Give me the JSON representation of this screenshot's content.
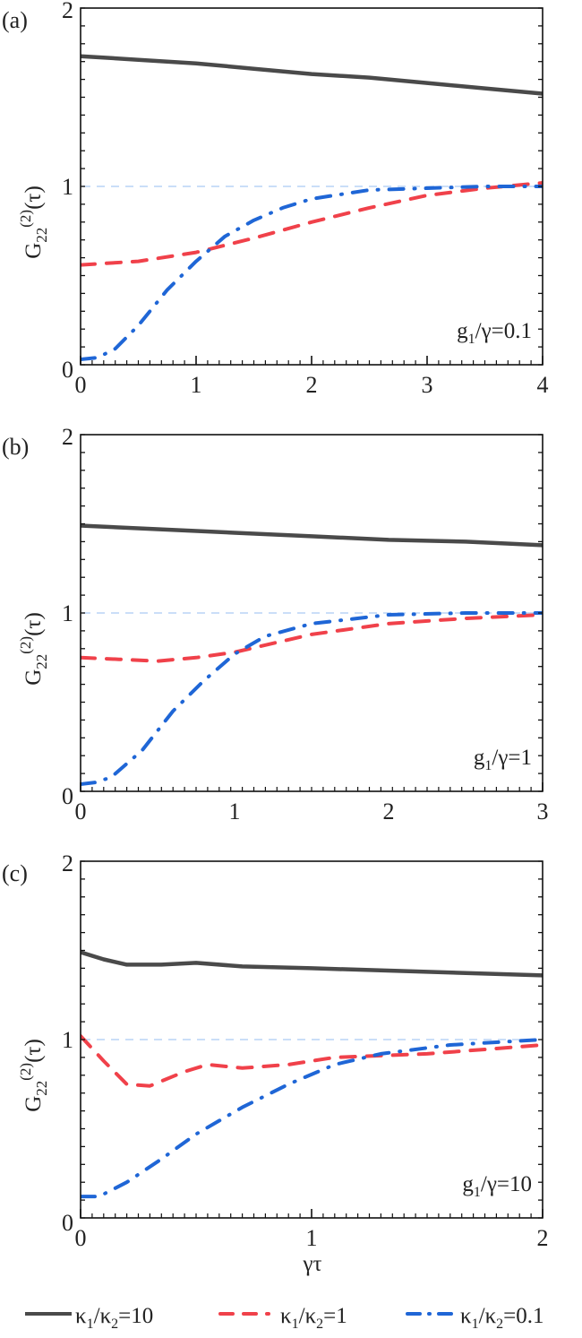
{
  "chart_data": [
    {
      "type": "line",
      "panel_label": "(a)",
      "annotation": {
        "main": "g",
        "sub": "1",
        "rest": "/γ=0.1"
      },
      "ylabel": {
        "main": "G",
        "sub": "22",
        "sup": "(2)",
        "rest": "(τ)"
      },
      "xlabel": "",
      "xlim": [
        0,
        4
      ],
      "ylim": [
        0,
        2
      ],
      "xticks": [
        "0",
        "1",
        "2",
        "3",
        "4"
      ],
      "xtick_values": [
        0,
        1,
        2,
        3,
        4
      ],
      "yticks": [
        "0",
        "1",
        "2"
      ],
      "ytick_values": [
        0,
        1,
        2
      ],
      "reference_line": 1,
      "series": [
        {
          "name": "κ1/κ2=10",
          "style": "solid",
          "x": [
            0,
            0.5,
            1,
            1.5,
            2,
            2.5,
            3,
            3.5,
            4
          ],
          "y": [
            1.73,
            1.71,
            1.69,
            1.66,
            1.63,
            1.61,
            1.58,
            1.55,
            1.52
          ]
        },
        {
          "name": "κ1/κ2=1",
          "style": "dash",
          "x": [
            0,
            0.5,
            1,
            1.25,
            1.5,
            2,
            2.5,
            3,
            3.5,
            4
          ],
          "y": [
            0.56,
            0.58,
            0.63,
            0.67,
            0.71,
            0.8,
            0.88,
            0.95,
            0.99,
            1.02
          ]
        },
        {
          "name": "κ1/κ2=0.1",
          "style": "dashdot",
          "x": [
            0,
            0.15,
            0.3,
            0.5,
            0.75,
            1,
            1.25,
            1.5,
            1.75,
            2,
            2.5,
            3,
            3.5,
            4
          ],
          "y": [
            0.03,
            0.04,
            0.09,
            0.22,
            0.42,
            0.58,
            0.72,
            0.81,
            0.88,
            0.93,
            0.98,
            0.99,
            1.0,
            1.0
          ]
        }
      ]
    },
    {
      "type": "line",
      "panel_label": "(b)",
      "annotation": {
        "main": "g",
        "sub": "1",
        "rest": "/γ=1"
      },
      "ylabel": {
        "main": "G",
        "sub": "22",
        "sup": "(2)",
        "rest": "(τ)"
      },
      "xlabel": "",
      "xlim": [
        0,
        3
      ],
      "ylim": [
        0,
        2
      ],
      "xticks": [
        "0",
        "1",
        "2",
        "3"
      ],
      "xtick_values": [
        0,
        1,
        2,
        3
      ],
      "yticks": [
        "0",
        "1",
        "2"
      ],
      "ytick_values": [
        0,
        1,
        2
      ],
      "reference_line": 1,
      "series": [
        {
          "name": "κ1/κ2=10",
          "style": "solid",
          "x": [
            0,
            0.5,
            1,
            1.5,
            2,
            2.5,
            3
          ],
          "y": [
            1.49,
            1.47,
            1.45,
            1.43,
            1.41,
            1.4,
            1.38
          ]
        },
        {
          "name": "κ1/κ2=1",
          "style": "dash",
          "x": [
            0,
            0.25,
            0.5,
            0.75,
            1,
            1.25,
            1.5,
            2,
            2.5,
            3
          ],
          "y": [
            0.75,
            0.74,
            0.73,
            0.75,
            0.78,
            0.83,
            0.88,
            0.94,
            0.97,
            0.99
          ]
        },
        {
          "name": "κ1/κ2=0.1",
          "style": "dashdot",
          "x": [
            0,
            0.1,
            0.2,
            0.4,
            0.6,
            0.8,
            1,
            1.2,
            1.5,
            2,
            2.5,
            3
          ],
          "y": [
            0.04,
            0.05,
            0.08,
            0.23,
            0.45,
            0.62,
            0.77,
            0.87,
            0.94,
            0.99,
            1.0,
            1.0
          ]
        }
      ]
    },
    {
      "type": "line",
      "panel_label": "(c)",
      "annotation": {
        "main": "g",
        "sub": "1",
        "rest": "/γ=10"
      },
      "ylabel": {
        "main": "G",
        "sub": "22",
        "sup": "(2)",
        "rest": "(τ)"
      },
      "xlabel": "γτ",
      "xlim": [
        0,
        2
      ],
      "ylim": [
        0,
        2
      ],
      "xticks": [
        "0",
        "1",
        "2"
      ],
      "xtick_values": [
        0,
        1,
        2
      ],
      "yticks": [
        "0",
        "1",
        "2"
      ],
      "ytick_values": [
        0,
        1,
        2
      ],
      "reference_line": 1,
      "series": [
        {
          "name": "κ1/κ2=10",
          "style": "solid",
          "x": [
            0,
            0.1,
            0.2,
            0.35,
            0.5,
            0.7,
            1,
            1.5,
            2
          ],
          "y": [
            1.49,
            1.45,
            1.42,
            1.42,
            1.43,
            1.41,
            1.4,
            1.38,
            1.36
          ]
        },
        {
          "name": "κ1/κ2=1",
          "style": "dash",
          "x": [
            0,
            0.1,
            0.2,
            0.3,
            0.45,
            0.55,
            0.7,
            0.9,
            1.1,
            1.5,
            2
          ],
          "y": [
            1.02,
            0.88,
            0.75,
            0.74,
            0.82,
            0.86,
            0.84,
            0.86,
            0.9,
            0.92,
            0.97
          ]
        },
        {
          "name": "κ1/κ2=0.1",
          "style": "dashdot",
          "x": [
            0,
            0.08,
            0.2,
            0.35,
            0.5,
            0.7,
            0.9,
            1.1,
            1.3,
            1.6,
            2
          ],
          "y": [
            0.12,
            0.12,
            0.2,
            0.33,
            0.47,
            0.62,
            0.75,
            0.86,
            0.92,
            0.97,
            1.0
          ]
        }
      ]
    }
  ],
  "legend": {
    "placement": "bottom",
    "entries": [
      {
        "k1": "κ",
        "s1": "1",
        "slash": "/",
        "k2": "κ",
        "s2": "2",
        "value": "=10",
        "style": "solid"
      },
      {
        "k1": "κ",
        "s1": "1",
        "slash": "/",
        "k2": "κ",
        "s2": "2",
        "value": "=1",
        "style": "dash"
      },
      {
        "k1": "κ",
        "s1": "1",
        "slash": "/",
        "k2": "κ",
        "s2": "2",
        "value": "=0.1",
        "style": "dashdot"
      }
    ]
  },
  "colors": {
    "solid": "#4a4a4a",
    "dash": "#f0414a",
    "dashdot": "#1f66d6",
    "reference": "#b9d3f5",
    "axis": "#111111"
  }
}
